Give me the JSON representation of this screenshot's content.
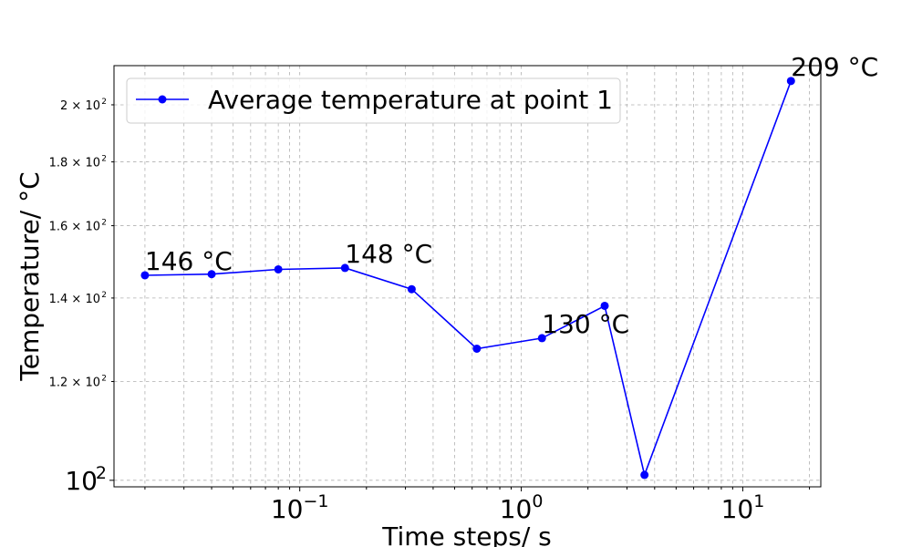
{
  "chart_data": {
    "type": "line",
    "xscale": "log",
    "yscale": "log",
    "xlim": [
      0.0145,
      22.5
    ],
    "ylim": [
      98.8,
      215
    ],
    "grid": true,
    "grid_which": "both",
    "xlabel": "Time steps/ s",
    "ylabel": "Temperature/ °C",
    "legend_placement": "upper left",
    "x_ticks": [
      {
        "value": 0.1,
        "base": "10",
        "exp": "−1"
      },
      {
        "value": 1,
        "base": "10",
        "exp": "0"
      },
      {
        "value": 10,
        "base": "10",
        "exp": "1"
      }
    ],
    "y_ticks": [
      {
        "value": 100,
        "base": "10",
        "exp": "2",
        "size": "major"
      },
      {
        "value": 120,
        "base": "1.2 × 10",
        "exp": "2",
        "size": "minor"
      },
      {
        "value": 140,
        "base": "1.4 × 10",
        "exp": "2",
        "size": "minor"
      },
      {
        "value": 160,
        "base": "1.6 × 10",
        "exp": "2",
        "size": "minor"
      },
      {
        "value": 180,
        "base": "1.8 × 10",
        "exp": "2",
        "size": "minor"
      },
      {
        "value": 200,
        "base": "2 × 10",
        "exp": "2",
        "size": "minor"
      }
    ],
    "series": [
      {
        "name": "Average temperature at point 1",
        "color": "#0000ff",
        "marker": "circle",
        "x": [
          0.02,
          0.04,
          0.08,
          0.16,
          0.32,
          0.63,
          1.24,
          2.38,
          3.6,
          16.5
        ],
        "y": [
          146,
          146.3,
          147.6,
          148,
          142.3,
          127.5,
          130,
          138,
          101,
          209
        ]
      }
    ],
    "annotations": [
      {
        "text": "146 °C",
        "x": 0.02,
        "y": 146
      },
      {
        "text": "148 °C",
        "x": 0.16,
        "y": 148
      },
      {
        "text": "130 °C",
        "x": 1.24,
        "y": 130
      },
      {
        "text": "209 °C",
        "x": 16.5,
        "y": 209
      }
    ]
  }
}
